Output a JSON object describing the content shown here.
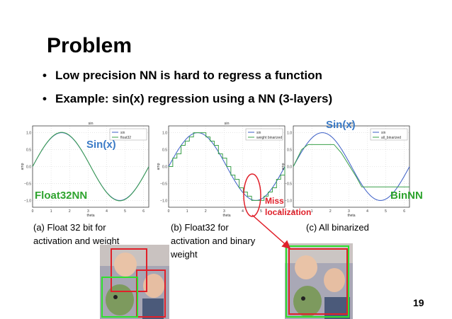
{
  "slide": {
    "title": "Problem",
    "bullets": [
      "Low precision NN is hard  to regress a function",
      "Example: sin(x) regression using a NN (3-layers)"
    ],
    "page_number": "19"
  },
  "labels": {
    "sin_left": "Sin(x)",
    "sin_right": "Sin(x)",
    "float32nn": "Float32NN",
    "binnn": "BinNN",
    "miss_line1": "Miss",
    "miss_line2": "localization"
  },
  "captions": {
    "a_line1": "(a) Float 32 bit for",
    "a_line2": "activation and weight",
    "b_line1": "(b) Float32 for",
    "b_line2": "activation and binary",
    "b_line3": "weight",
    "c_line1": "(c) All binarized"
  },
  "colors": {
    "blue": "#3a7ac6",
    "green": "#2ea32e",
    "red": "#e0202a"
  },
  "chart_data": [
    {
      "type": "line",
      "title": "sin",
      "xlabel": "theta",
      "ylabel": "amp",
      "xlim": [
        0,
        6.28
      ],
      "ylim": [
        -1.2,
        1.2
      ],
      "xticks": [
        "0",
        "1",
        "2",
        "3",
        "4",
        "5",
        "6"
      ],
      "yticks": [
        "1.0",
        "0.5",
        "0.0",
        "−0.5",
        "−1.0"
      ],
      "legend": [
        "sin",
        "float32"
      ],
      "legend_position": "top-right",
      "grid": true,
      "series": [
        {
          "name": "sin",
          "function": "sin(x)"
        },
        {
          "name": "float32",
          "function": "sin(x)"
        }
      ]
    },
    {
      "type": "line",
      "title": "sin",
      "xlabel": "theta",
      "ylabel": "amp",
      "xlim": [
        0,
        6.28
      ],
      "ylim": [
        -1.2,
        1.2
      ],
      "xticks": [
        "0",
        "1",
        "2",
        "3",
        "4",
        "5",
        "6"
      ],
      "yticks": [
        "1.0",
        "0.5",
        "0.0",
        "−0.5",
        "−1.0"
      ],
      "legend": [
        "sin",
        "weight binarized"
      ],
      "legend_position": "top-right",
      "grid": true,
      "series": [
        {
          "name": "sin",
          "function": "sin(x)"
        },
        {
          "name": "weight binarized",
          "function": "step-approximation of sin(x)"
        }
      ]
    },
    {
      "type": "line",
      "title": "sin",
      "xlabel": "theta",
      "ylabel": "amp",
      "xlim": [
        0,
        6.28
      ],
      "ylim": [
        -1.2,
        1.2
      ],
      "xticks": [
        "0",
        "1",
        "2",
        "3",
        "4",
        "5",
        "6"
      ],
      "yticks": [
        "1.0",
        "0.5",
        "0.0",
        "−0.5",
        "−1.0"
      ],
      "legend": [
        "sin",
        "all_binarized"
      ],
      "legend_position": "top-right",
      "grid": true,
      "series": [
        {
          "name": "sin",
          "function": "sin(x)"
        },
        {
          "name": "all_binarized",
          "x": [
            0,
            0.45,
            0.8,
            2.2,
            2.6,
            3.4,
            3.7,
            6.28
          ],
          "y": [
            0.0,
            0.5,
            0.65,
            0.65,
            0.4,
            -0.3,
            -0.6,
            -0.6
          ]
        }
      ]
    }
  ]
}
